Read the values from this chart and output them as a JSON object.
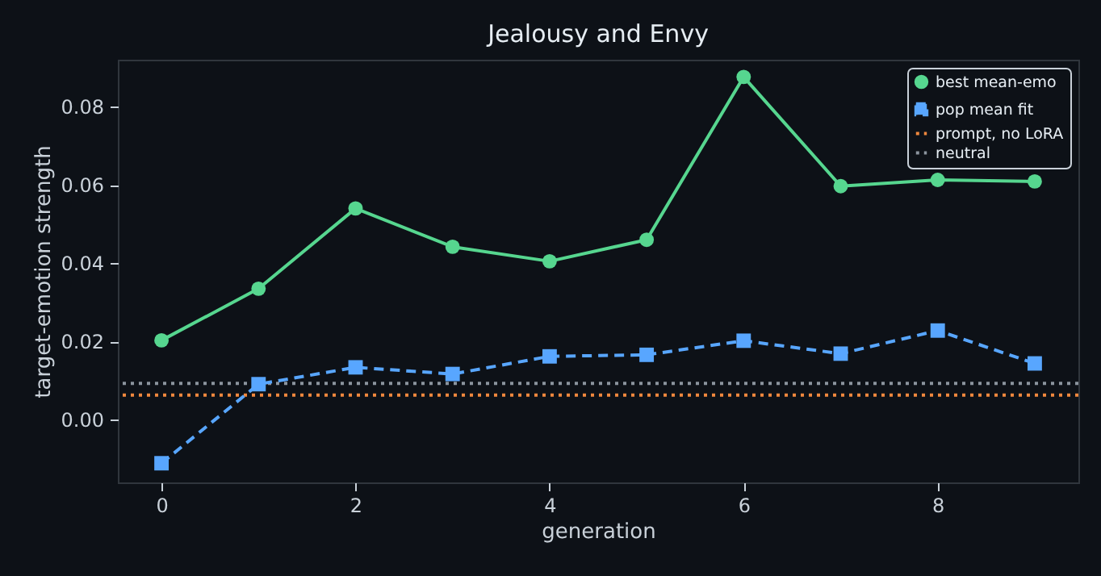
{
  "chart_data": {
    "type": "line",
    "title": "Jealousy and Envy",
    "xlabel": "generation",
    "ylabel": "target-emotion strength",
    "x": [
      0,
      1,
      2,
      3,
      4,
      5,
      6,
      7,
      8,
      9
    ],
    "series": [
      {
        "name": "best mean-emo",
        "color": "#56d68f",
        "marker": "circle",
        "line_style": "solid",
        "values": [
          0.0203,
          0.0335,
          0.054,
          0.0442,
          0.0405,
          0.046,
          0.0876,
          0.0597,
          0.0613,
          0.0609
        ]
      },
      {
        "name": "pop mean fit",
        "color": "#58a6ff",
        "marker": "square",
        "line_style": "dashed",
        "values": [
          -0.0111,
          0.0091,
          0.0134,
          0.0117,
          0.0162,
          0.0166,
          0.0202,
          0.0169,
          0.0228,
          0.0144
        ]
      }
    ],
    "ref_lines": [
      {
        "axis": "y",
        "value": 0.0063,
        "label": "prompt, no LoRA",
        "color": "#f0883e",
        "line_style": "dotted"
      },
      {
        "axis": "y",
        "value": 0.0093,
        "label": "neutral",
        "color": "#8b949e",
        "line_style": "dotted"
      }
    ],
    "xlim": [
      -0.45,
      9.45
    ],
    "xticks": [
      0,
      2,
      4,
      6,
      8
    ],
    "ylim": [
      -0.016,
      0.092
    ],
    "yticks": [
      {
        "value": 0,
        "label": "0.00"
      },
      {
        "value": 0.02,
        "label": "0.02"
      },
      {
        "value": 0.04,
        "label": "0.04"
      },
      {
        "value": 0.06,
        "label": "0.06"
      },
      {
        "value": 0.08,
        "label": "0.08"
      }
    ],
    "grid": false,
    "legend": "top right"
  }
}
